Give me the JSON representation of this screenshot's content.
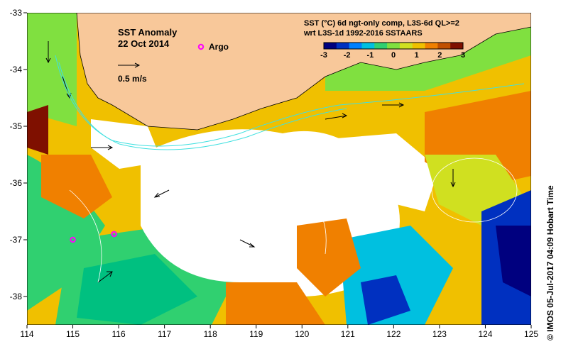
{
  "map": {
    "title": "SST Anomaly",
    "date": "22 Oct 2014",
    "argo_label": "Argo",
    "velocity_scale_label": "0.5 m/s",
    "colorbar": {
      "title_line1": "SST (°C) 6d ngt-only comp, L3S-6d QL>=2",
      "title_line2": "wrt L3S-1d 1992-2016 SSTAARS",
      "ticks": [
        "-3",
        "-2",
        "-1",
        "0",
        "1",
        "2",
        "3"
      ],
      "colors": [
        "#00007f",
        "#0030c0",
        "#0080ff",
        "#00c0e0",
        "#30d070",
        "#80e040",
        "#d0e020",
        "#f0c000",
        "#f08000",
        "#c05000",
        "#7f1000"
      ]
    },
    "x_ticks": [
      "114",
      "115",
      "116",
      "117",
      "118",
      "119",
      "120",
      "121",
      "122",
      "123",
      "124",
      "125"
    ],
    "y_ticks": [
      "-33",
      "-34",
      "-35",
      "-36",
      "-37",
      "-38"
    ],
    "x_range": [
      114,
      125
    ],
    "y_range": [
      -38.5,
      -33
    ],
    "argo_floats": [
      {
        "lon": 115.0,
        "lat": -37.0
      },
      {
        "lon": 115.9,
        "lat": -36.9
      }
    ],
    "credit": "©  IMOS 05-Jul-2017 04:09 Hobart Time",
    "colors": {
      "land": "#f8c89a",
      "argo": "#ff00ff",
      "current": "#40e0e0"
    }
  }
}
